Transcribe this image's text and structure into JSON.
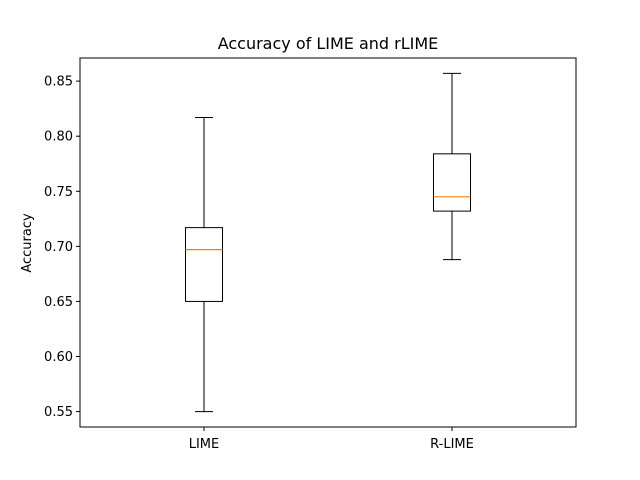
{
  "chart_data": {
    "type": "box",
    "title": "Accuracy of LIME and rLIME",
    "xlabel": "",
    "ylabel": "Accuracy",
    "ylim": [
      0.536,
      0.871
    ],
    "yticks": [
      0.55,
      0.6,
      0.65,
      0.7,
      0.75,
      0.8,
      0.85
    ],
    "ytick_labels": [
      "0.55",
      "0.60",
      "0.65",
      "0.70",
      "0.75",
      "0.80",
      "0.85"
    ],
    "categories": [
      "LIME",
      "R-LIME"
    ],
    "boxes": [
      {
        "label": "LIME",
        "whisker_low": 0.55,
        "q1": 0.65,
        "median": 0.697,
        "q3": 0.717,
        "whisker_high": 0.817
      },
      {
        "label": "R-LIME",
        "whisker_low": 0.688,
        "q1": 0.732,
        "median": 0.745,
        "q3": 0.784,
        "whisker_high": 0.857
      }
    ],
    "grid": false,
    "colors": {
      "box": "#000000",
      "median": "#ff7f0e",
      "axes": "#000000"
    }
  }
}
